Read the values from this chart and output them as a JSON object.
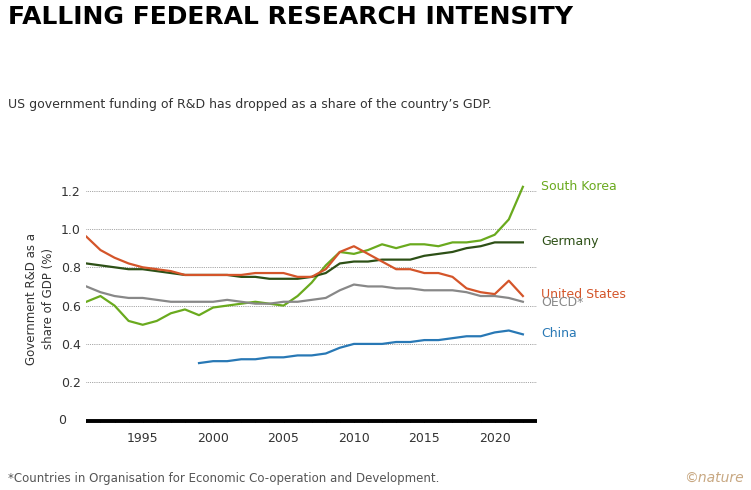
{
  "title": "FALLING FEDERAL RESEARCH INTENSITY",
  "subtitle": "US government funding of R&D has dropped as a share of the country’s GDP.",
  "ylabel": "Government R&D as a\nshare of GDP (%)",
  "footnote": "*Countries in Organisation for Economic Co-operation and Development.",
  "nature_text": "©nature",
  "yticks": [
    0.2,
    0.4,
    0.6,
    0.8,
    1.0,
    1.2
  ],
  "series": {
    "South Korea": {
      "color": "#6aaa1e",
      "linewidth": 1.6,
      "years": [
        1991,
        1992,
        1993,
        1994,
        1995,
        1996,
        1997,
        1998,
        1999,
        2000,
        2001,
        2002,
        2003,
        2004,
        2005,
        2006,
        2007,
        2008,
        2009,
        2010,
        2011,
        2012,
        2013,
        2014,
        2015,
        2016,
        2017,
        2018,
        2019,
        2020,
        2021,
        2022
      ],
      "values": [
        0.62,
        0.65,
        0.6,
        0.52,
        0.5,
        0.52,
        0.56,
        0.58,
        0.55,
        0.59,
        0.6,
        0.61,
        0.62,
        0.61,
        0.6,
        0.65,
        0.72,
        0.81,
        0.88,
        0.87,
        0.89,
        0.92,
        0.9,
        0.92,
        0.92,
        0.91,
        0.93,
        0.93,
        0.94,
        0.97,
        1.05,
        1.22
      ]
    },
    "Germany": {
      "color": "#2d5016",
      "linewidth": 1.6,
      "years": [
        1991,
        1992,
        1993,
        1994,
        1995,
        1996,
        1997,
        1998,
        1999,
        2000,
        2001,
        2002,
        2003,
        2004,
        2005,
        2006,
        2007,
        2008,
        2009,
        2010,
        2011,
        2012,
        2013,
        2014,
        2015,
        2016,
        2017,
        2018,
        2019,
        2020,
        2021,
        2022
      ],
      "values": [
        0.82,
        0.81,
        0.8,
        0.79,
        0.79,
        0.78,
        0.77,
        0.76,
        0.76,
        0.76,
        0.76,
        0.75,
        0.75,
        0.74,
        0.74,
        0.74,
        0.75,
        0.77,
        0.82,
        0.83,
        0.83,
        0.84,
        0.84,
        0.84,
        0.86,
        0.87,
        0.88,
        0.9,
        0.91,
        0.93,
        0.93,
        0.93
      ]
    },
    "United States": {
      "color": "#d4552a",
      "linewidth": 1.6,
      "years": [
        1991,
        1992,
        1993,
        1994,
        1995,
        1996,
        1997,
        1998,
        1999,
        2000,
        2001,
        2002,
        2003,
        2004,
        2005,
        2006,
        2007,
        2008,
        2009,
        2010,
        2011,
        2012,
        2013,
        2014,
        2015,
        2016,
        2017,
        2018,
        2019,
        2020,
        2021,
        2022
      ],
      "values": [
        0.96,
        0.89,
        0.85,
        0.82,
        0.8,
        0.79,
        0.78,
        0.76,
        0.76,
        0.76,
        0.76,
        0.76,
        0.77,
        0.77,
        0.77,
        0.75,
        0.75,
        0.79,
        0.88,
        0.91,
        0.87,
        0.83,
        0.79,
        0.79,
        0.77,
        0.77,
        0.75,
        0.69,
        0.67,
        0.66,
        0.73,
        0.65
      ]
    },
    "OECD": {
      "color": "#888888",
      "linewidth": 1.6,
      "years": [
        1991,
        1992,
        1993,
        1994,
        1995,
        1996,
        1997,
        1998,
        1999,
        2000,
        2001,
        2002,
        2003,
        2004,
        2005,
        2006,
        2007,
        2008,
        2009,
        2010,
        2011,
        2012,
        2013,
        2014,
        2015,
        2016,
        2017,
        2018,
        2019,
        2020,
        2021,
        2022
      ],
      "values": [
        0.7,
        0.67,
        0.65,
        0.64,
        0.64,
        0.63,
        0.62,
        0.62,
        0.62,
        0.62,
        0.63,
        0.62,
        0.61,
        0.61,
        0.62,
        0.62,
        0.63,
        0.64,
        0.68,
        0.71,
        0.7,
        0.7,
        0.69,
        0.69,
        0.68,
        0.68,
        0.68,
        0.67,
        0.65,
        0.65,
        0.64,
        0.62
      ]
    },
    "China": {
      "color": "#2878b5",
      "linewidth": 1.6,
      "years": [
        1999,
        2000,
        2001,
        2002,
        2003,
        2004,
        2005,
        2006,
        2007,
        2008,
        2009,
        2010,
        2011,
        2012,
        2013,
        2014,
        2015,
        2016,
        2017,
        2018,
        2019,
        2020,
        2021,
        2022
      ],
      "values": [
        0.3,
        0.31,
        0.31,
        0.32,
        0.32,
        0.33,
        0.33,
        0.34,
        0.34,
        0.35,
        0.38,
        0.4,
        0.4,
        0.4,
        0.41,
        0.41,
        0.42,
        0.42,
        0.43,
        0.44,
        0.44,
        0.46,
        0.47,
        0.45
      ]
    }
  },
  "xlabel_years": [
    1995,
    2000,
    2005,
    2010,
    2015,
    2020
  ],
  "xmin": 1991,
  "xmax": 2023,
  "ymin": -0.03,
  "ymax": 1.3,
  "background_color": "#ffffff"
}
